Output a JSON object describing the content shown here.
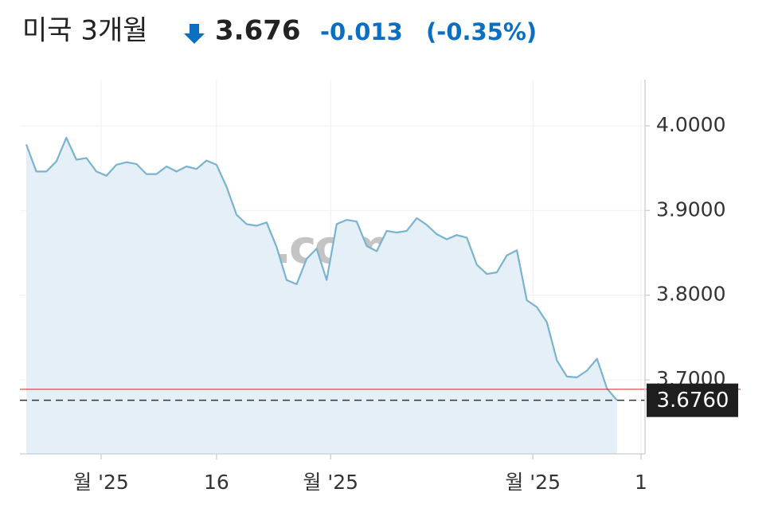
{
  "header": {
    "name": "미국 3개월",
    "price": "3.676",
    "change": "-0.013",
    "change_pct": "(-0.35%)"
  },
  "chart_data": {
    "type": "line",
    "watermark": "Investing.com",
    "x": [
      0,
      1,
      2,
      3,
      4,
      5,
      6,
      7,
      8,
      9,
      10,
      11,
      12,
      13,
      14,
      15,
      16,
      17,
      18,
      19,
      20,
      21,
      22,
      23,
      24,
      25,
      26,
      27,
      28,
      29,
      30,
      31,
      32,
      33,
      34,
      35,
      36,
      37,
      38,
      39,
      40,
      41,
      42,
      43,
      44,
      45,
      46,
      47,
      48,
      49,
      50,
      51,
      52,
      53,
      54,
      55,
      56,
      57,
      58,
      59
    ],
    "series": [
      {
        "color": "#7ab3cf",
        "fill": "#e4eff7",
        "values": [
          3.978,
          3.946,
          3.946,
          3.958,
          3.986,
          3.96,
          3.962,
          3.946,
          3.941,
          3.954,
          3.957,
          3.955,
          3.943,
          3.943,
          3.952,
          3.946,
          3.952,
          3.949,
          3.959,
          3.954,
          3.928,
          3.895,
          3.884,
          3.882,
          3.886,
          3.857,
          3.818,
          3.813,
          3.843,
          3.855,
          3.818,
          3.884,
          3.889,
          3.887,
          3.858,
          3.852,
          3.876,
          3.874,
          3.876,
          3.891,
          3.883,
          3.872,
          3.866,
          3.871,
          3.868,
          3.836,
          3.825,
          3.827,
          3.847,
          3.853,
          3.794,
          3.786,
          3.768,
          3.723,
          3.704,
          3.703,
          3.711,
          3.725,
          3.69,
          3.676
        ]
      }
    ],
    "xlim": [
      -0.64,
      61.8
    ],
    "xticks": [
      {
        "value": 7.47,
        "label": "월 '25"
      },
      {
        "value": 19,
        "label": "16"
      },
      {
        "value": 30.4,
        "label": "월 '25"
      },
      {
        "value": 50.6,
        "label": "월 '25"
      },
      {
        "value": 61.4,
        "label": "1"
      }
    ],
    "ylim": [
      3.6127,
      4.0545
    ],
    "yticks": [
      {
        "value": 3.7,
        "label": "3.7000"
      },
      {
        "value": 3.8,
        "label": "3.8000"
      },
      {
        "value": 3.9,
        "label": "3.9000"
      },
      {
        "value": 4.0,
        "label": "4.0000"
      }
    ],
    "grid": true,
    "previous_close": {
      "value": 3.689,
      "color": "#c62828"
    },
    "last_price": {
      "value": 3.676,
      "label": "3.6760"
    }
  }
}
